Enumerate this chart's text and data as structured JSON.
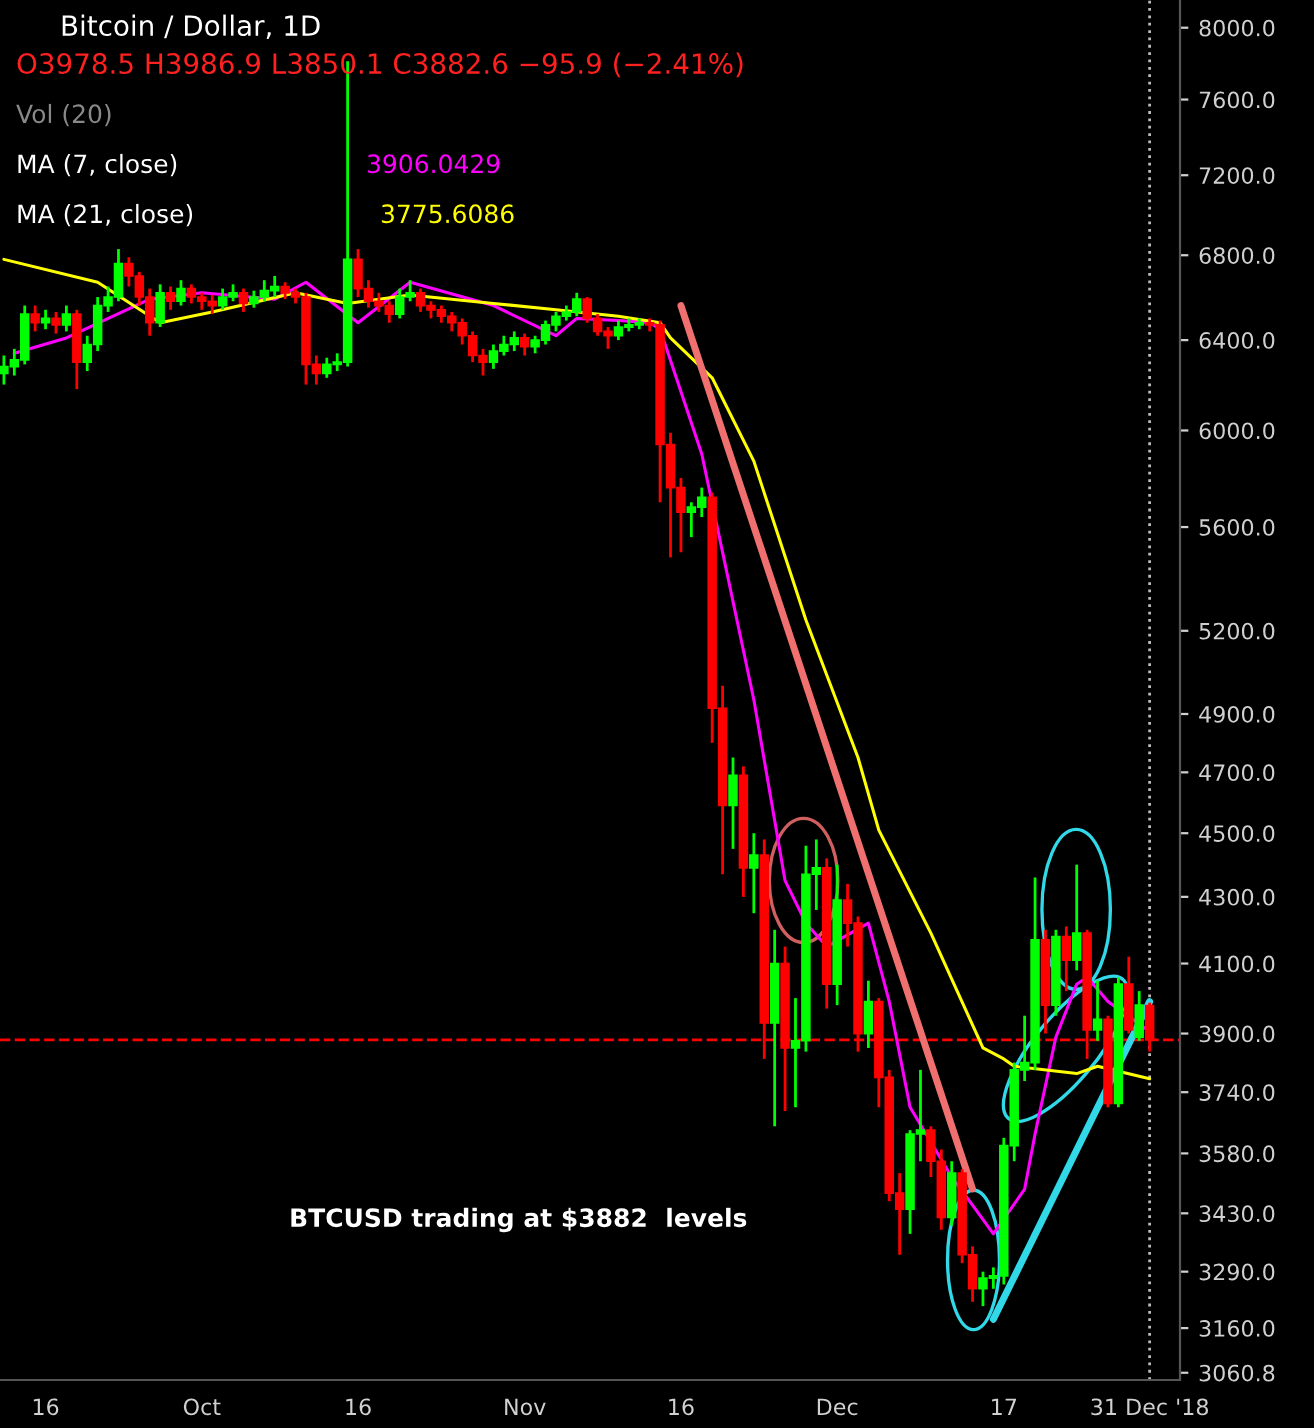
{
  "chart_data": {
    "type": "candlestick",
    "title": "Bitcoin / Dollar, 1D",
    "subtitle": "O3978.5 H3986.9 L3850.1 C3882.6 −95.9 (−2.41%)",
    "annotations": [
      "Vol (20)",
      "MA (7, close)",
      "3906.0429",
      "MA (21, close)",
      "3775.6086",
      "BTCUSD trading at $3882  levels"
    ],
    "x": [
      "2018-09-12",
      "2018-09-13",
      "2018-09-14",
      "2018-09-15",
      "2018-09-16",
      "2018-09-17",
      "2018-09-18",
      "2018-09-19",
      "2018-09-20",
      "2018-09-21",
      "2018-09-22",
      "2018-09-23",
      "2018-09-24",
      "2018-09-25",
      "2018-09-26",
      "2018-09-27",
      "2018-09-28",
      "2018-09-29",
      "2018-09-30",
      "2018-10-01",
      "2018-10-02",
      "2018-10-03",
      "2018-10-04",
      "2018-10-05",
      "2018-10-06",
      "2018-10-07",
      "2018-10-08",
      "2018-10-09",
      "2018-10-10",
      "2018-10-11",
      "2018-10-12",
      "2018-10-13",
      "2018-10-14",
      "2018-10-15",
      "2018-10-16",
      "2018-10-17",
      "2018-10-18",
      "2018-10-19",
      "2018-10-20",
      "2018-10-21",
      "2018-10-22",
      "2018-10-23",
      "2018-10-24",
      "2018-10-25",
      "2018-10-26",
      "2018-10-27",
      "2018-10-28",
      "2018-10-29",
      "2018-10-30",
      "2018-10-31",
      "2018-11-01",
      "2018-11-02",
      "2018-11-03",
      "2018-11-04",
      "2018-11-05",
      "2018-11-06",
      "2018-11-07",
      "2018-11-08",
      "2018-11-09",
      "2018-11-10",
      "2018-11-11",
      "2018-11-12",
      "2018-11-13",
      "2018-11-14",
      "2018-11-15",
      "2018-11-16",
      "2018-11-17",
      "2018-11-18",
      "2018-11-19",
      "2018-11-20",
      "2018-11-21",
      "2018-11-22",
      "2018-11-23",
      "2018-11-24",
      "2018-11-25",
      "2018-11-26",
      "2018-11-27",
      "2018-11-28",
      "2018-11-29",
      "2018-11-30",
      "2018-12-01",
      "2018-12-02",
      "2018-12-03",
      "2018-12-04",
      "2018-12-05",
      "2018-12-06",
      "2018-12-07",
      "2018-12-08",
      "2018-12-09",
      "2018-12-10",
      "2018-12-11",
      "2018-12-12",
      "2018-12-13",
      "2018-12-14",
      "2018-12-15",
      "2018-12-16",
      "2018-12-17",
      "2018-12-18",
      "2018-12-19",
      "2018-12-20",
      "2018-12-21",
      "2018-12-22",
      "2018-12-23",
      "2018-12-24",
      "2018-12-25",
      "2018-12-26",
      "2018-12-27",
      "2018-12-28",
      "2018-12-29",
      "2018-12-30",
      "2018-12-31"
    ],
    "ohlc": [
      [
        6250,
        6330,
        6200,
        6280
      ],
      [
        6280,
        6360,
        6240,
        6310
      ],
      [
        6310,
        6560,
        6290,
        6520
      ],
      [
        6520,
        6560,
        6440,
        6480
      ],
      [
        6480,
        6540,
        6450,
        6500
      ],
      [
        6500,
        6530,
        6430,
        6470
      ],
      [
        6470,
        6560,
        6440,
        6520
      ],
      [
        6520,
        6540,
        6180,
        6300
      ],
      [
        6300,
        6420,
        6260,
        6380
      ],
      [
        6380,
        6600,
        6350,
        6560
      ],
      [
        6560,
        6650,
        6530,
        6600
      ],
      [
        6600,
        6830,
        6580,
        6760
      ],
      [
        6760,
        6790,
        6650,
        6700
      ],
      [
        6700,
        6720,
        6560,
        6600
      ],
      [
        6600,
        6640,
        6420,
        6480
      ],
      [
        6480,
        6660,
        6460,
        6620
      ],
      [
        6620,
        6650,
        6540,
        6580
      ],
      [
        6580,
        6680,
        6560,
        6640
      ],
      [
        6640,
        6660,
        6570,
        6600
      ],
      [
        6600,
        6620,
        6540,
        6580
      ],
      [
        6580,
        6610,
        6520,
        6560
      ],
      [
        6560,
        6640,
        6540,
        6600
      ],
      [
        6600,
        6660,
        6580,
        6620
      ],
      [
        6620,
        6640,
        6530,
        6570
      ],
      [
        6570,
        6630,
        6550,
        6600
      ],
      [
        6600,
        6680,
        6580,
        6630
      ],
      [
        6630,
        6700,
        6600,
        6650
      ],
      [
        6650,
        6670,
        6590,
        6620
      ],
      [
        6620,
        6640,
        6570,
        6600
      ],
      [
        6600,
        6620,
        6200,
        6290
      ],
      [
        6290,
        6330,
        6200,
        6250
      ],
      [
        6250,
        6320,
        6230,
        6290
      ],
      [
        6290,
        6340,
        6260,
        6300
      ],
      [
        6300,
        7810,
        6280,
        6780
      ],
      [
        6780,
        6830,
        6600,
        6640
      ],
      [
        6640,
        6680,
        6550,
        6580
      ],
      [
        6580,
        6620,
        6530,
        6560
      ],
      [
        6560,
        6580,
        6480,
        6520
      ],
      [
        6520,
        6640,
        6500,
        6600
      ],
      [
        6600,
        6680,
        6580,
        6620
      ],
      [
        6620,
        6640,
        6530,
        6560
      ],
      [
        6560,
        6580,
        6500,
        6540
      ],
      [
        6540,
        6560,
        6480,
        6510
      ],
      [
        6510,
        6530,
        6440,
        6480
      ],
      [
        6480,
        6500,
        6380,
        6420
      ],
      [
        6420,
        6440,
        6300,
        6330
      ],
      [
        6330,
        6360,
        6240,
        6300
      ],
      [
        6300,
        6380,
        6270,
        6350
      ],
      [
        6350,
        6420,
        6330,
        6380
      ],
      [
        6380,
        6440,
        6350,
        6410
      ],
      [
        6410,
        6430,
        6330,
        6370
      ],
      [
        6370,
        6420,
        6340,
        6400
      ],
      [
        6400,
        6490,
        6380,
        6470
      ],
      [
        6470,
        6530,
        6440,
        6510
      ],
      [
        6510,
        6560,
        6490,
        6530
      ],
      [
        6530,
        6620,
        6510,
        6590
      ],
      [
        6590,
        6600,
        6480,
        6500
      ],
      [
        6500,
        6520,
        6420,
        6440
      ],
      [
        6440,
        6460,
        6360,
        6420
      ],
      [
        6420,
        6490,
        6400,
        6460
      ],
      [
        6460,
        6500,
        6440,
        6470
      ],
      [
        6470,
        6500,
        6450,
        6480
      ],
      [
        6480,
        6500,
        6440,
        6470
      ],
      [
        6470,
        6490,
        5700,
        5940
      ],
      [
        5940,
        5990,
        5480,
        5760
      ],
      [
        5760,
        5800,
        5500,
        5660
      ],
      [
        5660,
        5700,
        5560,
        5680
      ],
      [
        5680,
        5760,
        5640,
        5720
      ],
      [
        5720,
        5740,
        4800,
        4920
      ],
      [
        4920,
        5000,
        4370,
        4590
      ],
      [
        4590,
        4750,
        4450,
        4690
      ],
      [
        4690,
        4720,
        4300,
        4390
      ],
      [
        4390,
        4500,
        4250,
        4430
      ],
      [
        4430,
        4480,
        3830,
        3930
      ],
      [
        3930,
        4200,
        3650,
        4100
      ],
      [
        4100,
        4150,
        3690,
        3860
      ],
      [
        3860,
        4000,
        3700,
        3880
      ],
      [
        3880,
        4460,
        3850,
        4370
      ],
      [
        4370,
        4480,
        4260,
        4390
      ],
      [
        4390,
        4420,
        3970,
        4040
      ],
      [
        4040,
        4400,
        3980,
        4290
      ],
      [
        4290,
        4340,
        4150,
        4220
      ],
      [
        4220,
        4240,
        3850,
        3900
      ],
      [
        3900,
        4050,
        3860,
        3990
      ],
      [
        3990,
        4000,
        3700,
        3780
      ],
      [
        3780,
        3800,
        3460,
        3480
      ],
      [
        3480,
        3530,
        3330,
        3440
      ],
      [
        3440,
        3640,
        3380,
        3630
      ],
      [
        3630,
        3800,
        3560,
        3640
      ],
      [
        3640,
        3650,
        3520,
        3560
      ],
      [
        3560,
        3590,
        3390,
        3420
      ],
      [
        3420,
        3560,
        3400,
        3530
      ],
      [
        3530,
        3540,
        3310,
        3330
      ],
      [
        3330,
        3350,
        3220,
        3250
      ],
      [
        3250,
        3290,
        3210,
        3275
      ],
      [
        3275,
        3300,
        3250,
        3280
      ],
      [
        3280,
        3620,
        3260,
        3600
      ],
      [
        3600,
        3820,
        3560,
        3800
      ],
      [
        3800,
        3950,
        3770,
        3820
      ],
      [
        3820,
        4360,
        3800,
        4170
      ],
      [
        4170,
        4200,
        3900,
        3980
      ],
      [
        3980,
        4200,
        3950,
        4180
      ],
      [
        4180,
        4210,
        4020,
        4110
      ],
      [
        4110,
        4400,
        4080,
        4190
      ],
      [
        4190,
        4200,
        3830,
        3910
      ],
      [
        3910,
        4050,
        3880,
        3940
      ],
      [
        3940,
        3950,
        3700,
        3710
      ],
      [
        3710,
        4060,
        3700,
        4040
      ],
      [
        4040,
        4120,
        3900,
        3910
      ],
      [
        3890,
        4020,
        3880,
        3980
      ],
      [
        3978.5,
        3986.9,
        3850.1,
        3882.6
      ]
    ],
    "colors": [
      "#00ff00",
      "#00ff00",
      "#00ff00",
      "#ff0000",
      "#00ff00",
      "#ff0000",
      "#00ff00",
      "#ff0000",
      "#00ff00",
      "#00ff00",
      "#00ff00",
      "#00ff00",
      "#ff0000",
      "#ff0000",
      "#ff0000",
      "#00ff00",
      "#ff0000",
      "#00ff00",
      "#ff0000",
      "#ff0000",
      "#ff0000",
      "#00ff00",
      "#00ff00",
      "#ff0000",
      "#00ff00",
      "#00ff00",
      "#00ff00",
      "#ff0000",
      "#ff0000",
      "#ff0000",
      "#ff0000",
      "#00ff00",
      "#00ff00",
      "#00ff00",
      "#ff0000",
      "#ff0000",
      "#ff0000",
      "#ff0000",
      "#00ff00",
      "#00ff00",
      "#ff0000",
      "#ff0000",
      "#ff0000",
      "#ff0000",
      "#ff0000",
      "#ff0000",
      "#ff0000",
      "#00ff00",
      "#00ff00",
      "#00ff00",
      "#ff0000",
      "#00ff00",
      "#00ff00",
      "#00ff00",
      "#00ff00",
      "#00ff00",
      "#ff0000",
      "#ff0000",
      "#ff0000",
      "#00ff00",
      "#00ff00",
      "#00ff00",
      "#ff0000",
      "#ff0000",
      "#ff0000",
      "#ff0000",
      "#00ff00",
      "#00ff00",
      "#ff0000",
      "#ff0000",
      "#00ff00",
      "#ff0000",
      "#00ff00",
      "#ff0000",
      "#00ff00",
      "#ff0000",
      "#00ff00",
      "#00ff00",
      "#00ff00",
      "#ff0000",
      "#00ff00",
      "#ff0000",
      "#ff0000",
      "#00ff00",
      "#ff0000",
      "#ff0000",
      "#ff0000",
      "#00ff00",
      "#00ff00",
      "#ff0000",
      "#ff0000",
      "#00ff00",
      "#ff0000",
      "#ff0000",
      "#00ff00",
      "#00ff00",
      "#00ff00",
      "#00ff00",
      "#00ff00",
      "#00ff00",
      "#ff0000",
      "#00ff00",
      "#ff0000",
      "#00ff00",
      "#ff0000",
      "#00ff00",
      "#ff0000",
      "#00ff00",
      "#ff0000",
      "#00ff00",
      "#ff0000"
    ],
    "series": [
      {
        "type": "line",
        "color": "#ff00ff",
        "x": [
          "2018-09-13",
          "2018-09-18",
          "2018-09-26",
          "2018-10-01",
          "2018-10-08",
          "2018-10-11",
          "2018-10-16",
          "2018-10-21",
          "2018-10-29",
          "2018-11-04",
          "2018-11-06",
          "2018-11-10",
          "2018-11-13",
          "2018-11-14",
          "2018-11-18",
          "2018-11-23",
          "2018-11-26",
          "2018-11-28",
          "2018-11-30",
          "2018-12-04",
          "2018-12-06",
          "2018-12-08",
          "2018-12-12",
          "2018-12-14",
          "2018-12-16",
          "2018-12-19",
          "2018-12-20",
          "2018-12-22",
          "2018-12-24",
          "2018-12-25",
          "2018-12-27",
          "2018-12-31"
        ],
        "values": [
          6340,
          6410,
          6590,
          6620,
          6590,
          6670,
          6480,
          6670,
          6560,
          6420,
          6500,
          6490,
          6480,
          6450,
          5900,
          4950,
          4350,
          4220,
          4150,
          4220,
          3990,
          3700,
          3520,
          3450,
          3380,
          3490,
          3630,
          3890,
          4040,
          4060,
          3990,
          3906
        ]
      },
      {
        "type": "line",
        "color": "#ffff00",
        "x": [
          "2018-09-12",
          "2018-09-21",
          "2018-09-27",
          "2018-10-02",
          "2018-10-10",
          "2018-10-15",
          "2018-10-18",
          "2018-10-21",
          "2018-10-29",
          "2018-11-04",
          "2018-11-10",
          "2018-11-14",
          "2018-11-15",
          "2018-11-19",
          "2018-11-23",
          "2018-11-28",
          "2018-12-03",
          "2018-12-05",
          "2018-12-10",
          "2018-12-15",
          "2018-12-17",
          "2018-12-18",
          "2018-12-24",
          "2018-12-26",
          "2018-12-31"
        ],
        "values": [
          6780,
          6670,
          6480,
          6530,
          6620,
          6570,
          6590,
          6610,
          6570,
          6540,
          6510,
          6480,
          6410,
          6230,
          5870,
          5240,
          4750,
          4510,
          4190,
          3860,
          3830,
          3810,
          3790,
          3810,
          3776
        ]
      },
      {
        "type": "line",
        "color": "#f07070",
        "x": [
          "2018-11-16",
          "2018-12-14"
        ],
        "values": [
          6560,
          3490
        ]
      },
      {
        "type": "line",
        "color": "#30d8e8",
        "x": [
          "2018-12-16",
          "2018-12-31"
        ],
        "values": [
          3180,
          3990
        ]
      }
    ],
    "ref_lines": [
      {
        "axis": "y",
        "value": 3882.6,
        "color": "#ff0000",
        "line_style": "dashed"
      },
      {
        "axis": "x",
        "value": "2018-12-31",
        "color": "#bbbbbb",
        "line_style": "dotted"
      }
    ],
    "log": "y",
    "ylim": [
      3045,
      8160
    ],
    "yticks": [
      {
        "value": 8000,
        "label": "8000.0"
      },
      {
        "value": 7600,
        "label": "7600.0"
      },
      {
        "value": 7200,
        "label": "7200.0"
      },
      {
        "value": 6800,
        "label": "6800.0"
      },
      {
        "value": 6400,
        "label": "6400.0"
      },
      {
        "value": 6000,
        "label": "6000.0"
      },
      {
        "value": 5600,
        "label": "5600.0"
      },
      {
        "value": 5200,
        "label": "5200.0"
      },
      {
        "value": 4900,
        "label": "4900.0"
      },
      {
        "value": 4700,
        "label": "4700.0"
      },
      {
        "value": 4500,
        "label": "4500.0"
      },
      {
        "value": 4300,
        "label": "4300.0"
      },
      {
        "value": 4100,
        "label": "4100.0"
      },
      {
        "value": 3900,
        "label": "3900.0"
      },
      {
        "value": 3740,
        "label": "3740.0"
      },
      {
        "value": 3580,
        "label": "3580.0"
      },
      {
        "value": 3430,
        "label": "3430.0"
      },
      {
        "value": 3290,
        "label": "3290.0"
      },
      {
        "value": 3160,
        "label": "3160.0"
      },
      {
        "value": 3060.8,
        "label": "3060.8"
      }
    ],
    "xlim": [
      "2018-09-11T15:00",
      "2019-01-02T22:00"
    ],
    "xticks": [
      {
        "value": "2018-09-16",
        "label": "16"
      },
      {
        "value": "2018-10-01",
        "label": "Oct"
      },
      {
        "value": "2018-10-16",
        "label": "16"
      },
      {
        "value": "2018-11-01",
        "label": "Nov"
      },
      {
        "value": "2018-11-16",
        "label": "16"
      },
      {
        "value": "2018-12-01",
        "label": "Dec"
      },
      {
        "value": "2018-12-17",
        "label": "17"
      },
      {
        "value": "2018-12-31",
        "label": "31 Dec '18"
      }
    ],
    "grid": false,
    "legend": false
  }
}
